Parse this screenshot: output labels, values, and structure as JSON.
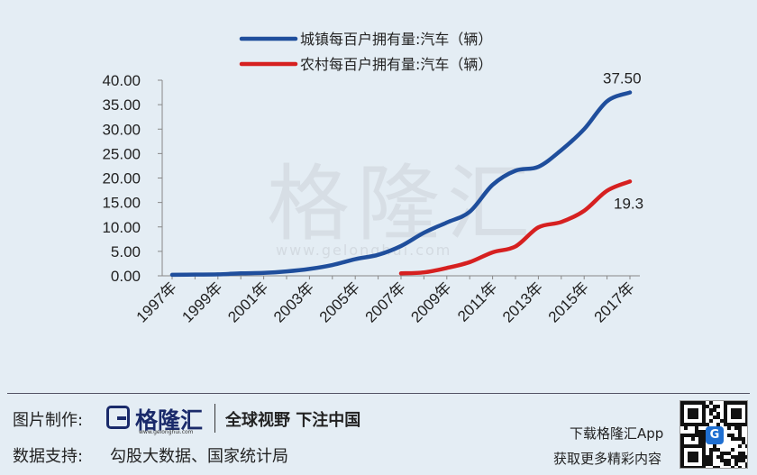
{
  "chart_data": {
    "type": "line",
    "title": "",
    "xlabel": "",
    "ylabel": "",
    "ylim": [
      0,
      40
    ],
    "yticks": [
      "0.00",
      "5.00",
      "10.00",
      "15.00",
      "20.00",
      "25.00",
      "30.00",
      "35.00",
      "40.00"
    ],
    "xticks": [
      "1997年",
      "1999年",
      "2001年",
      "2003年",
      "2005年",
      "2007年",
      "2009年",
      "2011年",
      "2013年",
      "2015年",
      "2017年"
    ],
    "x": [
      1997,
      1998,
      1999,
      2000,
      2001,
      2002,
      2003,
      2004,
      2005,
      2006,
      2007,
      2008,
      2009,
      2010,
      2011,
      2012,
      2013,
      2014,
      2015,
      2016,
      2017
    ],
    "legend_position": "top",
    "grid": false,
    "series": [
      {
        "name": "城镇每百户拥有量:汽车（辆）",
        "color": "#1f4e9c",
        "values": [
          0.2,
          0.25,
          0.3,
          0.5,
          0.6,
          0.9,
          1.4,
          2.2,
          3.4,
          4.3,
          6.1,
          8.8,
          10.9,
          13.1,
          18.6,
          21.5,
          22.3,
          25.7,
          30.0,
          35.7,
          37.5
        ]
      },
      {
        "name": "农村每百户拥有量:汽车（辆）",
        "color": "#d62020",
        "values": [
          null,
          null,
          null,
          null,
          null,
          null,
          null,
          null,
          null,
          null,
          0.5,
          0.7,
          1.6,
          2.8,
          4.8,
          6.0,
          9.9,
          11.0,
          13.3,
          17.4,
          19.3
        ]
      }
    ],
    "annotations": [
      {
        "text": "37.50",
        "series": 0,
        "x": 2017
      },
      {
        "text": "19.3",
        "series": 1,
        "x": 2017
      }
    ]
  },
  "watermark": {
    "brand": "格隆汇",
    "url": "www.gelonghui.com"
  },
  "footer": {
    "made_by_label": "图片制作:",
    "logo_text": "格隆汇",
    "logo_sub": "www.gelonghui.com",
    "slogan": "全球视野 下注中国",
    "source_label": "数据支持:",
    "source_text": "勾股大数据、国家统计局",
    "download_text": "下载格隆汇App",
    "more_text": "获取更多精彩内容",
    "qr_badge": "G"
  }
}
